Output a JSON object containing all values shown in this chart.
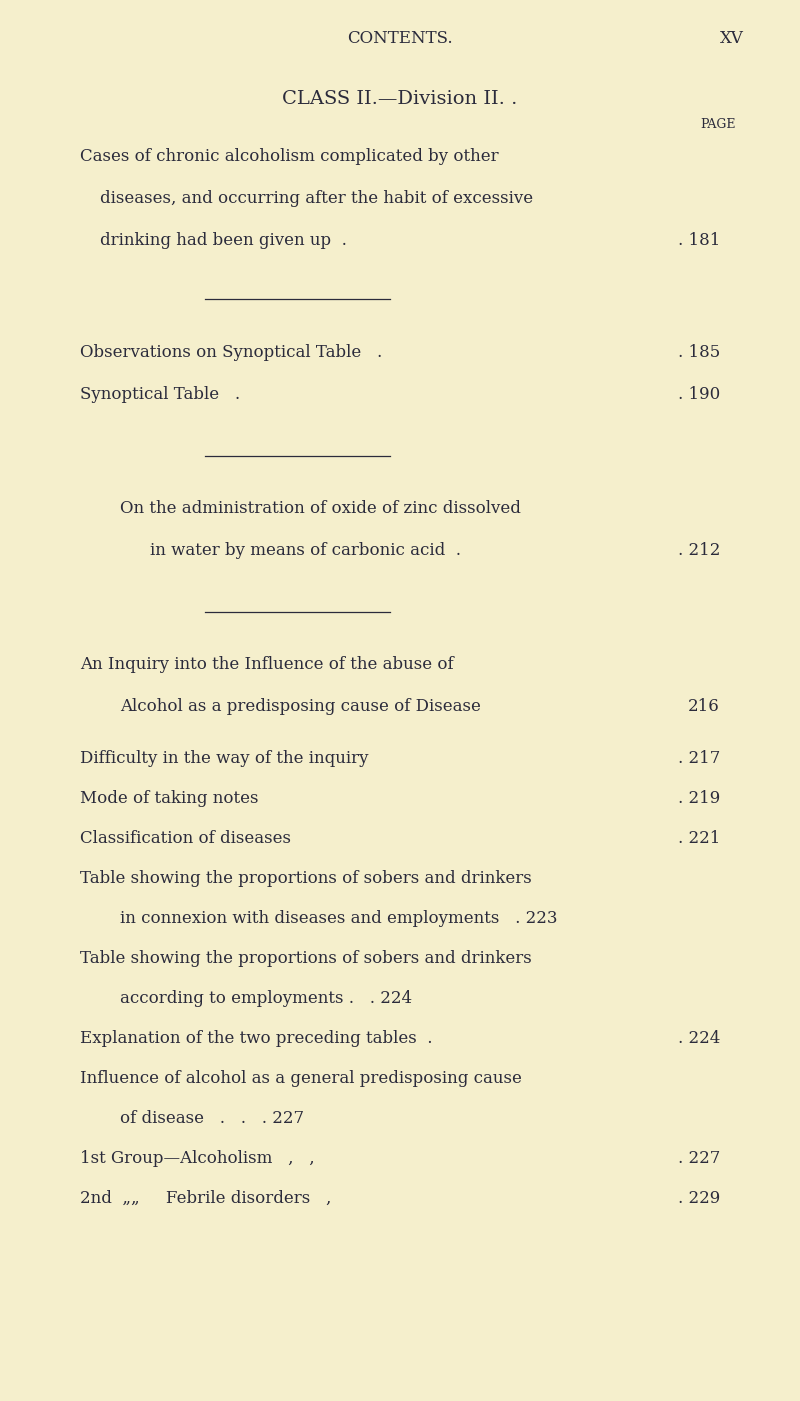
{
  "bg_color": "#f5efcc",
  "text_color": "#2b2b3b",
  "fig_w": 8.0,
  "fig_h": 14.01,
  "dpi": 100,
  "header_center": "CONTENTS.",
  "header_right": "XV",
  "title": "CLASS II.—Division II. .",
  "page_label": "PAGE",
  "lm": 0.1,
  "rm": 0.91,
  "cases_line1": "Cases of chronic alcoholism complicated by other",
  "cases_line2": "diseases, and occurring after the habit of excessive",
  "cases_line3": "drinking had been given up  .",
  "cases_page": ". 181",
  "obs_line": "Observations on Synoptical Table   .",
  "obs_page": ". 185",
  "syn_line": "Synoptical Table   .",
  "syn_page": ". 190",
  "zinc_line1": "On the administration of oxide of zinc dissolved",
  "zinc_line2": "in water by means of carbonic acid  .",
  "zinc_page": ". 212",
  "inq_line1": "An Inquiry into the Influence of the abuse of",
  "inq_line2": "Alcohol as a predisposing cause of Disease",
  "inq_page": "216",
  "sub_entries": [
    {
      "line1": "Difficulty in the way of the inquiry",
      "dots": ".",
      "page": ". 217",
      "cont": null,
      "indent": 0.1
    },
    {
      "line1": "Mode of taking notes",
      "dots": ".",
      "page": ". 219",
      "cont": null,
      "indent": 0.1
    },
    {
      "line1": "Classification of diseases",
      "dots": ".",
      "page": ". 221",
      "cont": null,
      "indent": 0.1
    },
    {
      "line1": "Table showing the proportions of sobers and drinkers",
      "dots": "",
      "page": "",
      "cont": "in connexion with diseases and employments   . 223",
      "indent": 0.1
    },
    {
      "line1": "Table showing the proportions of sobers and drinkers",
      "dots": "",
      "page": "",
      "cont": "according to employments .   . 224",
      "indent": 0.1
    },
    {
      "line1": "Explanation of the two preceding tables  .",
      "dots": "",
      "page": ". 224",
      "cont": null,
      "indent": 0.1
    },
    {
      "line1": "Influence of alcohol as a general predisposing cause",
      "dots": "",
      "page": "",
      "cont": "of disease   .   .   . 227",
      "indent": 0.1
    },
    {
      "line1": "1st Group—Alcoholism   ,   ,",
      "dots": "",
      "page": ". 227",
      "cont": null,
      "indent": 0.1
    },
    {
      "line1": "2nd  „„     Febrile disorders   ,",
      "dots": "",
      "page": ". 229",
      "cont": null,
      "indent": 0.1
    }
  ]
}
